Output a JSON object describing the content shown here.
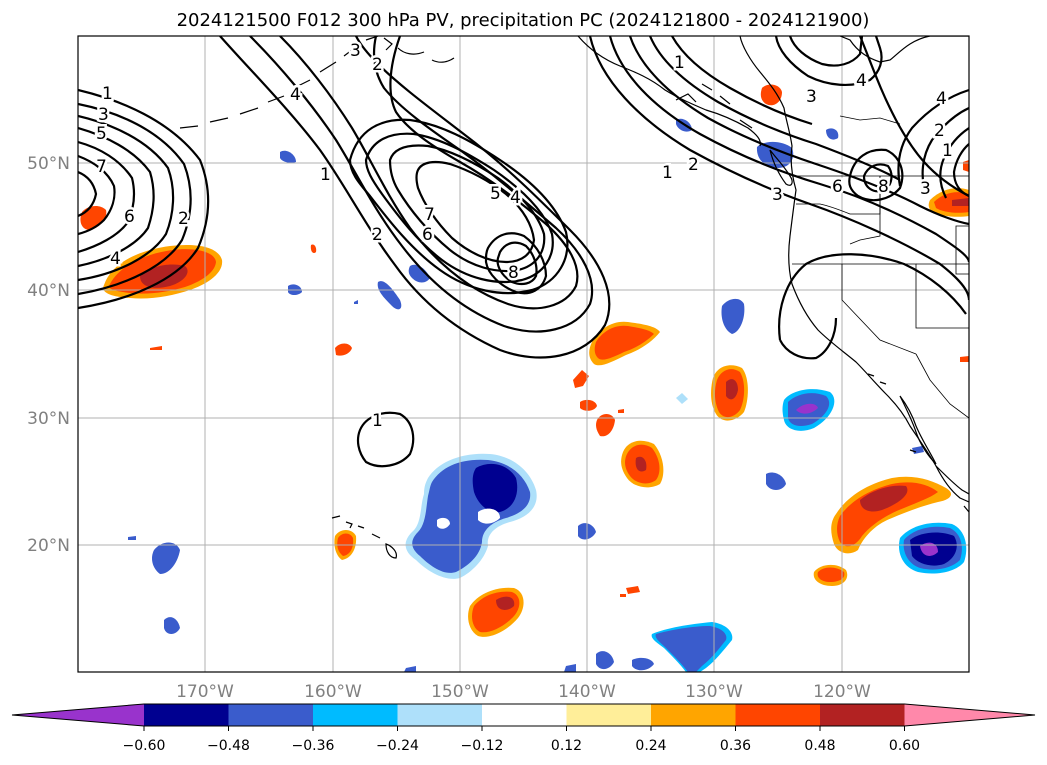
{
  "title": "2024121500 F012 300 hPa PV, precipitation PC (2024121800 - 2024121900)",
  "lon_labels": [
    "170°W",
    "160°W",
    "150°W",
    "140°W",
    "130°W",
    "120°W"
  ],
  "lat_labels": [
    "50°N",
    "40°N",
    "30°N",
    "20°N"
  ],
  "colorbar": {
    "tick_labels": [
      "−0.60",
      "−0.48",
      "−0.36",
      "−0.24",
      "−0.12",
      "0.12",
      "0.24",
      "0.36",
      "0.48",
      "0.60"
    ],
    "levels": [
      -0.6,
      -0.48,
      -0.36,
      -0.24,
      -0.12,
      0.12,
      0.24,
      0.36,
      0.48,
      0.6
    ],
    "colors": [
      "#9933cc",
      "#000090",
      "#3a5ccc",
      "#00bbff",
      "#aee0fa",
      "#ffffff",
      "#ffee99",
      "#ffa500",
      "#ff4500",
      "#b22222",
      "#ff88aa"
    ],
    "extend": "both"
  },
  "contour_labels": [
    "1",
    "3",
    "5",
    "7",
    "6",
    "2",
    "4",
    "1",
    "2",
    "4",
    "5",
    "4",
    "7",
    "6",
    "8",
    "1",
    "3",
    "2",
    "1",
    "2",
    "3",
    "4",
    "6",
    "8",
    "3",
    "4",
    "2",
    "1",
    "3",
    "1"
  ],
  "map": {
    "projection": "PlateCarree",
    "lon_range": [
      -180,
      -110
    ],
    "lat_range": [
      10,
      60
    ],
    "gridlines": true,
    "coastlines": true,
    "state_borders": true
  }
}
